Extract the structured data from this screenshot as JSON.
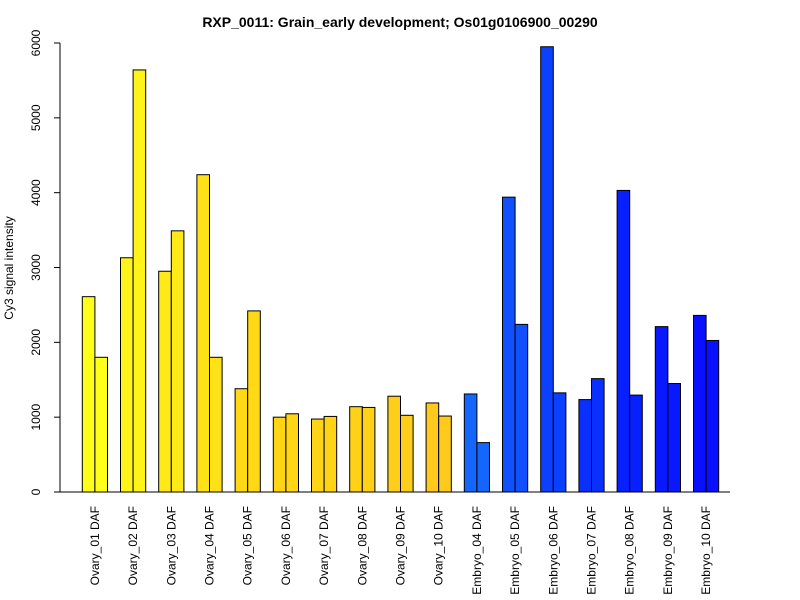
{
  "chart_data": {
    "type": "bar",
    "title": "RXP_0011: Grain_early development; Os01g0106900_00290",
    "xlabel": "",
    "ylabel": "Cy3 signal intensity",
    "ylim": [
      0,
      6000
    ],
    "yticks": [
      0,
      1000,
      2000,
      3000,
      4000,
      5000,
      6000
    ],
    "grid": false,
    "legend": "none",
    "bars_per_group": 2,
    "categories": [
      "Ovary_01 DAF",
      "Ovary_02 DAF",
      "Ovary_03 DAF",
      "Ovary_04 DAF",
      "Ovary_05 DAF",
      "Ovary_06 DAF",
      "Ovary_07 DAF",
      "Ovary_08 DAF",
      "Ovary_09 DAF",
      "Ovary_10 DAF",
      "Embryo_04 DAF",
      "Embryo_05 DAF",
      "Embryo_06 DAF",
      "Embryo_07 DAF",
      "Embryo_08 DAF",
      "Embryo_09 DAF",
      "Embryo_10 DAF"
    ],
    "colors": [
      "#ffff1a",
      "#fff419",
      "#ffe917",
      "#ffe117",
      "#ffd915",
      "#ffd516",
      "#ffd417",
      "#ffd218",
      "#ffce1a",
      "#ffca1c",
      "#1466ff",
      "#1050ff",
      "#0c40ff",
      "#0a30ff",
      "#0820ff",
      "#0818ff",
      "#0810ff"
    ],
    "series": [
      {
        "values": [
          2610,
          3130,
          2950,
          4240,
          1380,
          1000,
          975,
          1140,
          1280,
          1190,
          1310,
          3940,
          5950,
          1235,
          4030,
          2210,
          2360
        ]
      },
      {
        "values": [
          1800,
          5640,
          3490,
          1800,
          2420,
          1045,
          1010,
          1130,
          1025,
          1015,
          660,
          2240,
          1325,
          1515,
          1295,
          1450,
          2025
        ]
      }
    ]
  }
}
